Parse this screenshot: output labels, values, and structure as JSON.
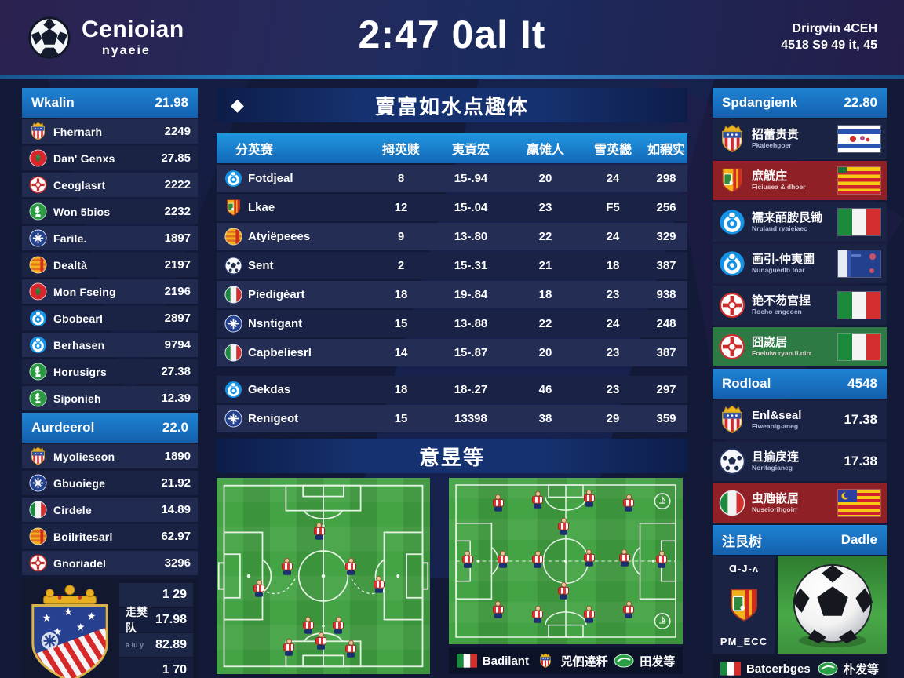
{
  "header": {
    "logo_title": "Cenioian",
    "logo_subtitle": "nyaeie",
    "title": "2:47 0al It",
    "info_line1": "Drirgvin 4CEH",
    "info_line2": "4518 S9 49 it, 45"
  },
  "left_sidebar": {
    "sections": [
      {
        "title": "Wkalin",
        "value": "21.98",
        "rows": [
          {
            "icon": "atletico-crest",
            "name": "Fhernarh",
            "value": "2249"
          },
          {
            "icon": "red-green-badge",
            "name": "Dan' Genxs",
            "value": "27.85"
          },
          {
            "icon": "white-red-badge",
            "name": "Ceoglasrt",
            "value": "2222"
          },
          {
            "icon": "green-badge",
            "name": "Won 5bios",
            "value": "2232"
          },
          {
            "icon": "blue-badge",
            "name": "Farile.",
            "value": "1897"
          },
          {
            "icon": "orange-stripes-badge",
            "name": "Dealtà",
            "value": "2197"
          },
          {
            "icon": "red-green-badge",
            "name": "Mon Fseing",
            "value": "2196"
          },
          {
            "icon": "blue-round-badge",
            "name": "Gbobearl",
            "value": "2897"
          },
          {
            "icon": "blue-round-badge",
            "name": "Berhasen",
            "value": "9794"
          },
          {
            "icon": "green-badge",
            "name": "Horusigrs",
            "value": "27.38"
          },
          {
            "icon": "green-badge",
            "name": "Siponieh",
            "value": "12.39"
          }
        ]
      },
      {
        "title": "Aurdeerol",
        "value": "22.0",
        "rows": [
          {
            "icon": "atletico-crest",
            "name": "Myolieseon",
            "value": "1890"
          },
          {
            "icon": "blue-badge",
            "name": "Gbuoiege",
            "value": "21.92"
          },
          {
            "icon": "italy-badge",
            "name": "Cirdele",
            "value": "14.89"
          },
          {
            "icon": "orange-stripes-badge",
            "name": "Boilritesarl",
            "value": "62.97"
          },
          {
            "icon": "white-red-badge",
            "name": "Gnoriadel",
            "value": "3296"
          }
        ]
      }
    ],
    "footer": {
      "rows": [
        {
          "label": "",
          "value": "1 29",
          "faint": false
        },
        {
          "label": "走樊队",
          "value": "17.98",
          "faint": false
        },
        {
          "label": "a lu y",
          "value": "82.89",
          "faint": true
        },
        {
          "label": "",
          "value": "1 70",
          "faint": false
        }
      ]
    }
  },
  "main": {
    "diamond": "◆",
    "title": "賣富如水点趣体",
    "table": {
      "columns": [
        "分英赛",
        "拇英赎",
        "夷貢宏",
        "羸傩人",
        "雪英畿",
        "如豭实"
      ],
      "rows": [
        {
          "icon": "blue-round-badge",
          "team": "Fotdjeal",
          "values": [
            "8",
            "15-.94",
            "20",
            "24",
            "298"
          ],
          "gap_before": false
        },
        {
          "icon": "orange-crest",
          "team": "Lkae",
          "values": [
            "12",
            "15-.04",
            "23",
            "F5",
            "256"
          ],
          "gap_before": false
        },
        {
          "icon": "orange-stripes-badge",
          "team": "Atyiëpeees",
          "values": [
            "9",
            "13-.80",
            "22",
            "24",
            "329"
          ],
          "gap_before": false
        },
        {
          "icon": "ball-badge",
          "team": "Sent",
          "values": [
            "2",
            "15-.31",
            "21",
            "18",
            "387"
          ],
          "gap_before": false
        },
        {
          "icon": "italy-badge",
          "team": "Piedigèart",
          "values": [
            "18",
            "19-.84",
            "18",
            "23",
            "938"
          ],
          "gap_before": false
        },
        {
          "icon": "blue-badge",
          "team": "Nsntigant",
          "values": [
            "15",
            "13-.88",
            "22",
            "24",
            "248"
          ],
          "gap_before": false
        },
        {
          "icon": "italy-badge",
          "team": "Capbeliesrl",
          "values": [
            "14",
            "15-.87",
            "20",
            "23",
            "387"
          ],
          "gap_before": false
        },
        {
          "icon": "blue-round-badge",
          "team": "Gekdas",
          "values": [
            "18",
            "18-.27",
            "46",
            "23",
            "297"
          ],
          "gap_before": true
        },
        {
          "icon": "blue-badge",
          "team": "Renigeot",
          "values": [
            "15",
            "13398",
            "38",
            "29",
            "359"
          ],
          "gap_before": false
        }
      ]
    },
    "pitch_title": "意昱等",
    "pitches": {
      "left_players": [
        [
          48,
          28
        ],
        [
          33,
          46
        ],
        [
          63,
          46
        ],
        [
          20,
          57
        ],
        [
          76,
          55
        ],
        [
          43,
          76
        ],
        [
          57,
          76
        ],
        [
          49,
          84
        ],
        [
          34,
          87
        ],
        [
          63,
          88
        ]
      ],
      "right_players": [
        [
          21,
          16
        ],
        [
          38,
          14
        ],
        [
          60,
          13
        ],
        [
          77,
          16
        ],
        [
          49,
          30
        ],
        [
          8,
          50
        ],
        [
          23,
          50
        ],
        [
          38,
          50
        ],
        [
          60,
          49
        ],
        [
          75,
          49
        ],
        [
          91,
          50
        ],
        [
          49,
          69
        ],
        [
          21,
          80
        ],
        [
          38,
          83
        ],
        [
          60,
          83
        ],
        [
          77,
          80
        ]
      ]
    },
    "legend": [
      {
        "icon": "italy-flag",
        "label": "Badilant"
      },
      {
        "icon": "atletico-crest",
        "label": "兕伵逹粁"
      },
      {
        "icon": "green-oval",
        "label": "田发等"
      }
    ]
  },
  "right_sidebar": {
    "section1": {
      "title": "Spdangienk",
      "value": "22.80",
      "rows": [
        {
          "icon": "atletico-crest",
          "name": "招蕾贵贵",
          "sub": "Pkaieehgoer",
          "flag": "white-blue",
          "bg": "navy"
        },
        {
          "icon": "orange-crest",
          "name": "庶觥庄",
          "sub": "Ficiusea & dhoer",
          "flag": "catalonia",
          "bg": "darkred"
        },
        {
          "icon": "blue-round-badge",
          "name": "襦来皕胺艮锄",
          "sub": "Nruland ryaieiaec",
          "flag": "italy",
          "bg": "navy"
        },
        {
          "icon": "blue-round-badge",
          "name": "画引-仲夷圃",
          "sub": "Nunaguedlb foar",
          "flag": "france",
          "bg": "navy"
        },
        {
          "icon": "white-red-badge",
          "name": "铯不芴宫捏",
          "sub": "Roeho engcoen",
          "flag": "italy",
          "bg": "navy"
        },
        {
          "icon": "white-red-badge",
          "name": "囧嵗居",
          "sub": "Foeiuiw ryan.fi.oirr",
          "flag": "italy",
          "bg": "green"
        }
      ]
    },
    "section2": {
      "title": "Rodloal",
      "value": "4548",
      "rows": [
        {
          "icon": "atletico-crest",
          "name": "Enl&seal",
          "sub": "Fiweaoig-aneg",
          "value": "17.38",
          "bg": "navy"
        },
        {
          "icon": "ball-badge",
          "name": "且揄戾连",
          "sub": "Noritagianeg",
          "value": "17.38",
          "bg": "navy"
        },
        {
          "icon": "italy-badge",
          "name": "虫虺嵌居",
          "sub": "Nuseiorihgoirr",
          "flag": "malaysia",
          "bg": "darkred"
        }
      ]
    },
    "section3": {
      "title": "注艮树",
      "value": "Dadle",
      "panel": {
        "top_text": "Ɑ-Ј-ʌ",
        "bottom_text": "PM_ECC"
      },
      "legend": [
        {
          "icon": "italy-flag",
          "label": "Batcerbges"
        },
        {
          "icon": "green-oval",
          "label": "朴发等"
        }
      ]
    }
  },
  "colors": {
    "accent_blue": "#1e86d8",
    "header_line": "#2496dc",
    "pitch_green": "#3f9b3f",
    "dark_red_row": "#8e2026",
    "green_row": "#2e7a44"
  }
}
